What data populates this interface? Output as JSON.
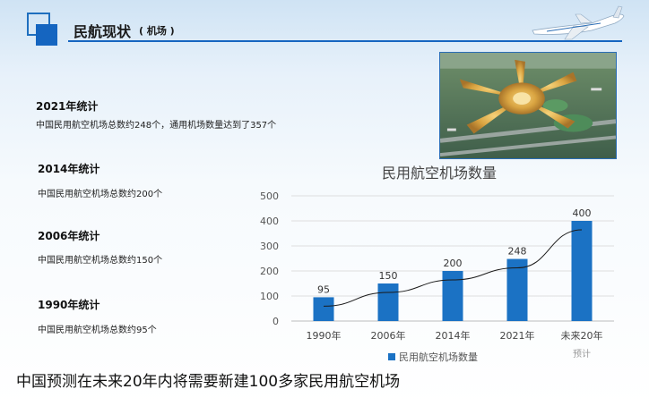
{
  "header": {
    "title": "民航现状",
    "subtitle": "( 机场 )"
  },
  "stats": [
    {
      "heading": "2021年统计",
      "text": "中国民用航空机场总数约248个，通用机场数量达到了357个"
    },
    {
      "heading": "2014年统计",
      "text": "中国民用航空机场总数约200个"
    },
    {
      "heading": "2006年统计",
      "text": "中国民用航空机场总数约150个"
    },
    {
      "heading": "1990年统计",
      "text": "中国民用航空机场总数约95个"
    }
  ],
  "chart_data": {
    "type": "bar",
    "title": "民用航空机场数量",
    "categories": [
      "1990年",
      "2006年",
      "2014年",
      "2021年",
      "未来20年"
    ],
    "category_notes": [
      "",
      "",
      "",
      "",
      "预计"
    ],
    "series": [
      {
        "name": "民用航空机场数量",
        "values": [
          95,
          150,
          200,
          248,
          400
        ]
      }
    ],
    "trendline": true,
    "yticks": [
      0,
      100,
      200,
      300,
      400,
      500
    ],
    "ylim": [
      0,
      500
    ],
    "grid": true,
    "legend_position": "bottom",
    "colors": {
      "bar": "#1b72c4",
      "line": "#1a1a1a"
    }
  },
  "footer": {
    "text": "中国预测在未来20年内将需要新建100多家民用航空机场"
  },
  "colors": {
    "accent": "#1565c0"
  }
}
